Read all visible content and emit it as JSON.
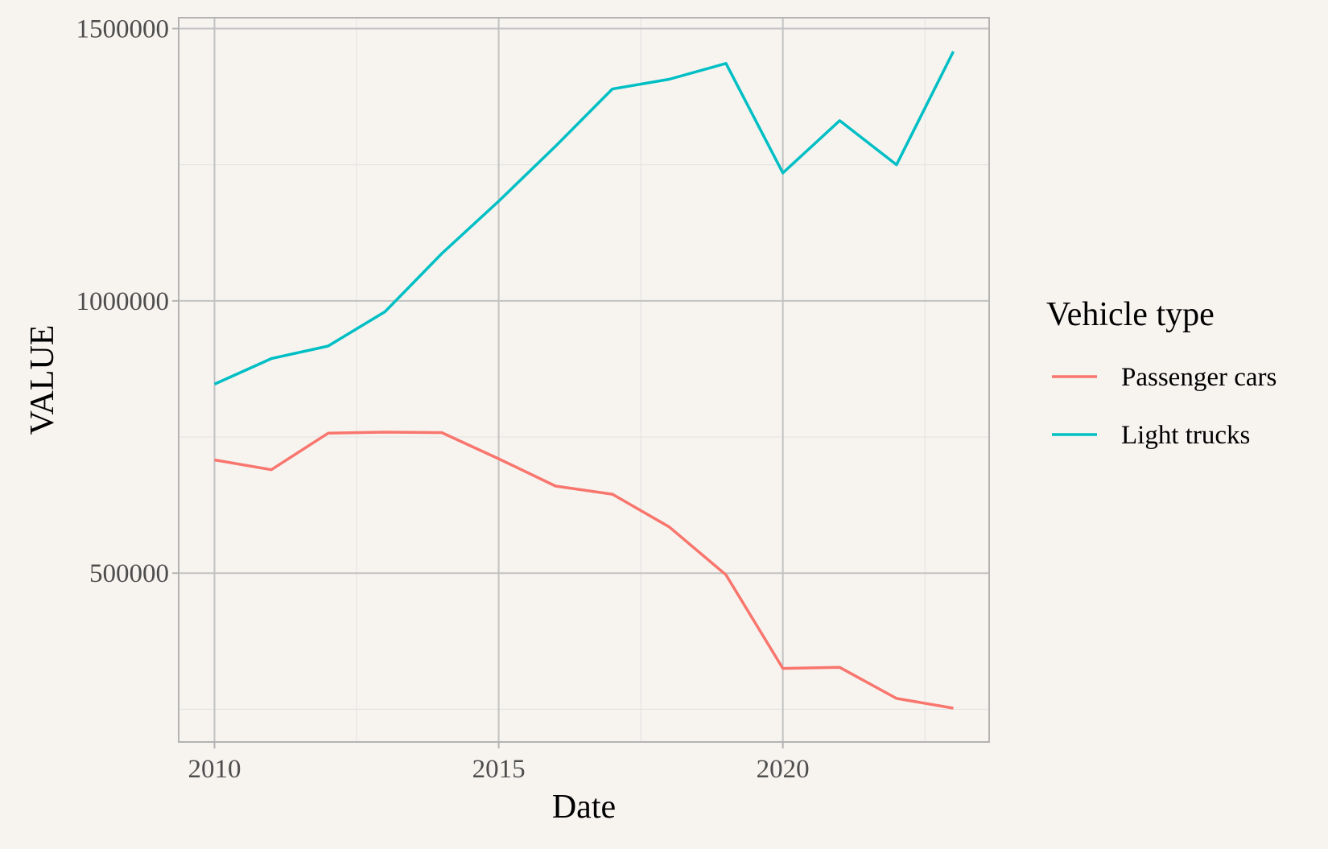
{
  "chart_data": {
    "type": "line",
    "title": "",
    "xlabel": "Date",
    "ylabel": "VALUE",
    "x": [
      2010,
      2011,
      2012,
      2013,
      2014,
      2015,
      2016,
      2017,
      2018,
      2019,
      2020,
      2021,
      2022,
      2023
    ],
    "xlim": [
      2009.37,
      2023.63
    ],
    "ylim": [
      190000,
      1520000
    ],
    "x_ticks": [
      2010,
      2015,
      2020
    ],
    "x_tick_labels": [
      "2010",
      "2015",
      "2020"
    ],
    "x_minor_ticks": [
      2012.5,
      2017.5,
      2022.5
    ],
    "y_ticks": [
      500000,
      1000000,
      1500000
    ],
    "y_tick_labels": [
      "500000",
      "1000000",
      "1500000"
    ],
    "y_minor_ticks": [
      250000,
      750000,
      1250000
    ],
    "grid": true,
    "legend": {
      "title": "Vehicle type",
      "position": "right"
    },
    "series": [
      {
        "name": "Passenger cars",
        "color": "#f8766d",
        "values": [
          708000,
          690000,
          757000,
          759000,
          758000,
          710000,
          660000,
          645000,
          585000,
          497000,
          325000,
          327000,
          270000,
          252000
        ]
      },
      {
        "name": "Light trucks",
        "color": "#00bfc4",
        "values": [
          847000,
          894000,
          917000,
          980000,
          1087000,
          1183000,
          1284000,
          1389000,
          1407000,
          1436000,
          1235000,
          1331000,
          1250000,
          1458000
        ]
      }
    ]
  }
}
